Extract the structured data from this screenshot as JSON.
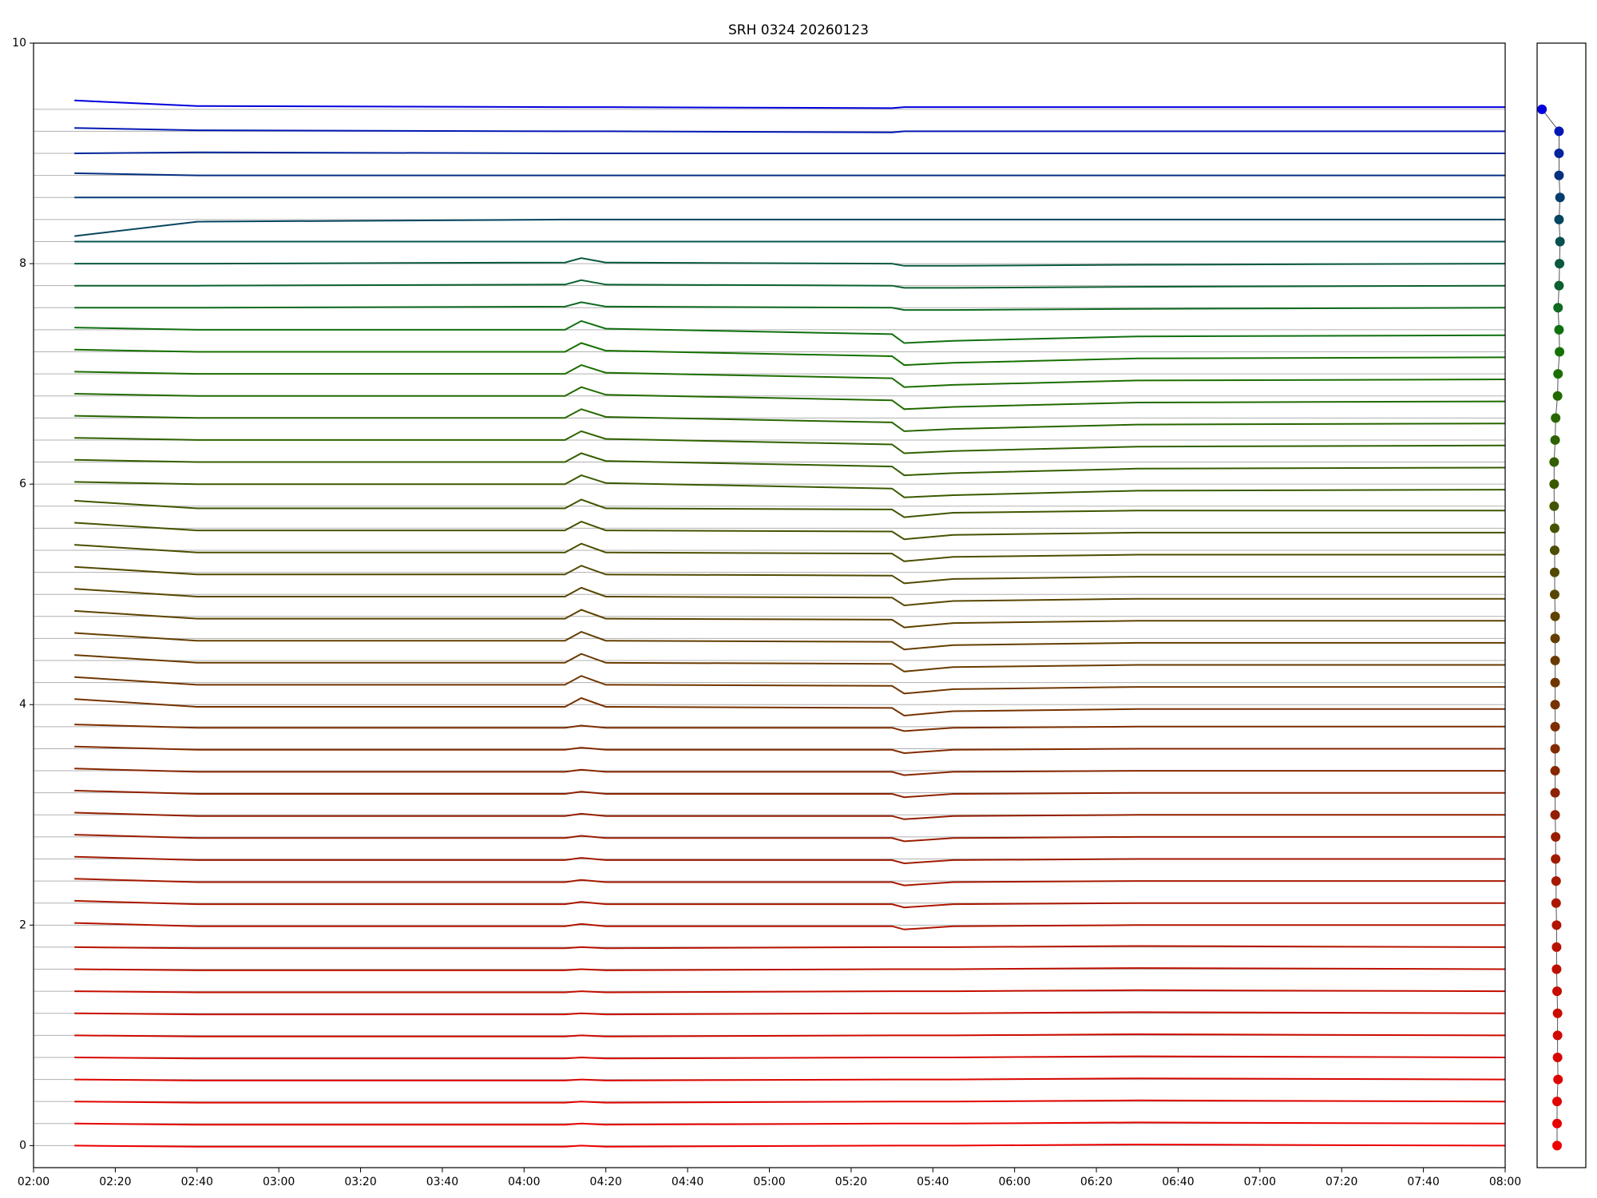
{
  "chart_data": [
    {
      "type": "line",
      "title": "SRH 0324 20260123",
      "x": [
        "02:10",
        "02:40",
        "04:10",
        "04:14",
        "04:20",
        "05:30",
        "05:33",
        "05:45",
        "06:30",
        "08:00"
      ],
      "xlim": [
        "02:00",
        "08:00"
      ],
      "xticks": [
        "02:00",
        "02:20",
        "02:40",
        "03:00",
        "03:20",
        "03:40",
        "04:00",
        "04:20",
        "04:40",
        "05:00",
        "05:20",
        "05:40",
        "06:00",
        "06:20",
        "06:40",
        "07:00",
        "07:20",
        "07:40",
        "08:00"
      ],
      "ylim": [
        -0.2,
        10
      ],
      "yticks": [
        0,
        2,
        4,
        6,
        8,
        10
      ],
      "baselines": [
        0,
        0.2,
        0.4,
        0.6,
        0.8,
        1,
        1.2,
        1.4,
        1.6,
        1.8,
        2,
        2.2,
        2.4,
        2.6,
        2.8,
        3,
        3.2,
        3.4,
        3.6,
        3.8,
        4,
        4.2,
        4.4,
        4.6,
        4.8,
        5,
        5.2,
        5.4,
        5.6,
        5.8,
        6,
        6.2,
        6.4,
        6.6,
        6.8,
        7,
        7.2,
        7.4,
        7.6,
        7.8,
        8,
        8.2,
        8.4,
        8.6,
        8.8,
        9,
        9.2,
        9.4
      ],
      "baseline_color": "#b0b0b0",
      "series": [
        {
          "color": "#ee0000",
          "values": [
            0,
            -0.01,
            -0.01,
            0,
            -0.01,
            0,
            0,
            0,
            0.01,
            0
          ]
        },
        {
          "color": "#e80200",
          "values": [
            0.2,
            0.19,
            0.19,
            0.2,
            0.19,
            0.2,
            0.2,
            0.2,
            0.21,
            0.2
          ]
        },
        {
          "color": "#e20400",
          "values": [
            0.4,
            0.39,
            0.39,
            0.4,
            0.39,
            0.4,
            0.4,
            0.4,
            0.41,
            0.4
          ]
        },
        {
          "color": "#dc0600",
          "values": [
            0.6,
            0.59,
            0.59,
            0.6,
            0.59,
            0.6,
            0.6,
            0.6,
            0.61,
            0.6
          ]
        },
        {
          "color": "#d60800",
          "values": [
            0.8,
            0.79,
            0.79,
            0.8,
            0.79,
            0.8,
            0.8,
            0.8,
            0.81,
            0.8
          ]
        },
        {
          "color": "#d00a00",
          "values": [
            1,
            0.99,
            0.99,
            1,
            0.99,
            1,
            1,
            1,
            1.01,
            1
          ]
        },
        {
          "color": "#ca0c00",
          "values": [
            1.2,
            1.19,
            1.19,
            1.2,
            1.19,
            1.2,
            1.2,
            1.2,
            1.21,
            1.2
          ]
        },
        {
          "color": "#c40e00",
          "values": [
            1.4,
            1.39,
            1.39,
            1.4,
            1.39,
            1.4,
            1.4,
            1.4,
            1.41,
            1.4
          ]
        },
        {
          "color": "#be1000",
          "values": [
            1.6,
            1.59,
            1.59,
            1.6,
            1.59,
            1.6,
            1.6,
            1.6,
            1.61,
            1.6
          ]
        },
        {
          "color": "#b81200",
          "values": [
            1.8,
            1.79,
            1.79,
            1.8,
            1.79,
            1.8,
            1.8,
            1.8,
            1.81,
            1.8
          ]
        },
        {
          "color": "#b21400",
          "values": [
            2.02,
            1.99,
            1.99,
            2.01,
            1.99,
            1.99,
            1.96,
            1.99,
            2,
            2
          ]
        },
        {
          "color": "#ac1600",
          "values": [
            2.22,
            2.19,
            2.19,
            2.21,
            2.19,
            2.19,
            2.16,
            2.19,
            2.2,
            2.2
          ]
        },
        {
          "color": "#a61800",
          "values": [
            2.42,
            2.39,
            2.39,
            2.41,
            2.39,
            2.39,
            2.36,
            2.39,
            2.4,
            2.4
          ]
        },
        {
          "color": "#a01a00",
          "values": [
            2.62,
            2.59,
            2.59,
            2.61,
            2.59,
            2.59,
            2.56,
            2.59,
            2.6,
            2.6
          ]
        },
        {
          "color": "#9a1c00",
          "values": [
            2.82,
            2.79,
            2.79,
            2.81,
            2.79,
            2.79,
            2.76,
            2.79,
            2.8,
            2.8
          ]
        },
        {
          "color": "#941e00",
          "values": [
            3.02,
            2.99,
            2.99,
            3.01,
            2.99,
            2.99,
            2.96,
            2.99,
            3,
            3
          ]
        },
        {
          "color": "#8e2200",
          "values": [
            3.22,
            3.19,
            3.19,
            3.21,
            3.19,
            3.19,
            3.16,
            3.19,
            3.2,
            3.2
          ]
        },
        {
          "color": "#882600",
          "values": [
            3.42,
            3.39,
            3.39,
            3.41,
            3.39,
            3.39,
            3.36,
            3.39,
            3.4,
            3.4
          ]
        },
        {
          "color": "#822a00",
          "values": [
            3.62,
            3.59,
            3.59,
            3.61,
            3.59,
            3.59,
            3.56,
            3.59,
            3.6,
            3.6
          ]
        },
        {
          "color": "#7c2e00",
          "values": [
            3.82,
            3.79,
            3.79,
            3.81,
            3.79,
            3.79,
            3.76,
            3.79,
            3.8,
            3.8
          ]
        },
        {
          "color": "#763200",
          "values": [
            4.05,
            3.98,
            3.98,
            4.06,
            3.98,
            3.97,
            3.9,
            3.94,
            3.96,
            3.96
          ]
        },
        {
          "color": "#703600",
          "values": [
            4.25,
            4.18,
            4.18,
            4.26,
            4.18,
            4.17,
            4.1,
            4.14,
            4.16,
            4.16
          ]
        },
        {
          "color": "#6a3a00",
          "values": [
            4.45,
            4.38,
            4.38,
            4.46,
            4.38,
            4.37,
            4.3,
            4.34,
            4.36,
            4.36
          ]
        },
        {
          "color": "#643e00",
          "values": [
            4.65,
            4.58,
            4.58,
            4.66,
            4.58,
            4.57,
            4.5,
            4.54,
            4.56,
            4.56
          ]
        },
        {
          "color": "#5e4200",
          "values": [
            4.85,
            4.78,
            4.78,
            4.86,
            4.78,
            4.77,
            4.7,
            4.74,
            4.76,
            4.76
          ]
        },
        {
          "color": "#584600",
          "values": [
            5.05,
            4.98,
            4.98,
            5.06,
            4.98,
            4.97,
            4.9,
            4.94,
            4.96,
            4.96
          ]
        },
        {
          "color": "#524a00",
          "values": [
            5.25,
            5.18,
            5.18,
            5.26,
            5.18,
            5.17,
            5.1,
            5.14,
            5.16,
            5.16
          ]
        },
        {
          "color": "#4c4e00",
          "values": [
            5.45,
            5.38,
            5.38,
            5.46,
            5.38,
            5.37,
            5.3,
            5.34,
            5.36,
            5.36
          ]
        },
        {
          "color": "#465200",
          "values": [
            5.65,
            5.58,
            5.58,
            5.66,
            5.58,
            5.57,
            5.5,
            5.54,
            5.56,
            5.56
          ]
        },
        {
          "color": "#405600",
          "values": [
            5.85,
            5.78,
            5.78,
            5.86,
            5.78,
            5.77,
            5.7,
            5.74,
            5.76,
            5.76
          ]
        },
        {
          "color": "#3a5a00",
          "values": [
            6.02,
            6,
            6,
            6.08,
            6.01,
            5.96,
            5.88,
            5.9,
            5.94,
            5.95
          ]
        },
        {
          "color": "#345e00",
          "values": [
            6.22,
            6.2,
            6.2,
            6.28,
            6.21,
            6.16,
            6.08,
            6.1,
            6.14,
            6.15
          ]
        },
        {
          "color": "#2e6200",
          "values": [
            6.42,
            6.4,
            6.4,
            6.48,
            6.41,
            6.36,
            6.28,
            6.3,
            6.34,
            6.35
          ]
        },
        {
          "color": "#286600",
          "values": [
            6.62,
            6.6,
            6.6,
            6.68,
            6.61,
            6.56,
            6.48,
            6.5,
            6.54,
            6.55
          ]
        },
        {
          "color": "#226a00",
          "values": [
            6.82,
            6.8,
            6.8,
            6.88,
            6.81,
            6.76,
            6.68,
            6.7,
            6.74,
            6.75
          ]
        },
        {
          "color": "#1c6e00",
          "values": [
            7.02,
            7,
            7,
            7.08,
            7.01,
            6.96,
            6.88,
            6.9,
            6.94,
            6.95
          ]
        },
        {
          "color": "#167000",
          "values": [
            7.22,
            7.2,
            7.2,
            7.28,
            7.21,
            7.16,
            7.08,
            7.1,
            7.14,
            7.15
          ]
        },
        {
          "color": "#107010",
          "values": [
            7.42,
            7.4,
            7.4,
            7.48,
            7.41,
            7.36,
            7.28,
            7.3,
            7.34,
            7.35
          ]
        },
        {
          "color": "#0e6a20",
          "values": [
            7.6,
            7.6,
            7.61,
            7.65,
            7.61,
            7.6,
            7.58,
            7.58,
            7.59,
            7.6
          ]
        },
        {
          "color": "#0c6030",
          "values": [
            7.8,
            7.8,
            7.81,
            7.85,
            7.81,
            7.8,
            7.78,
            7.78,
            7.79,
            7.8
          ]
        },
        {
          "color": "#0a5840",
          "values": [
            8,
            8,
            8.01,
            8.05,
            8.01,
            8,
            7.98,
            7.98,
            7.99,
            8
          ]
        },
        {
          "color": "#085050",
          "values": [
            8.2,
            8.2,
            8.2,
            8.2,
            8.2,
            8.2,
            8.2,
            8.2,
            8.2,
            8.2
          ]
        },
        {
          "color": "#064660",
          "values": [
            8.25,
            8.38,
            8.4,
            8.4,
            8.4,
            8.4,
            8.4,
            8.4,
            8.4,
            8.4
          ]
        },
        {
          "color": "#053c70",
          "values": [
            8.6,
            8.6,
            8.6,
            8.6,
            8.6,
            8.6,
            8.6,
            8.6,
            8.6,
            8.6
          ]
        },
        {
          "color": "#043080",
          "values": [
            8.82,
            8.8,
            8.8,
            8.8,
            8.8,
            8.8,
            8.8,
            8.8,
            8.8,
            8.8
          ]
        },
        {
          "color": "#03249a",
          "values": [
            9,
            9.01,
            9,
            9,
            9,
            9,
            9,
            9,
            9,
            9
          ]
        },
        {
          "color": "#0218b4",
          "values": [
            9.23,
            9.21,
            9.2,
            9.2,
            9.2,
            9.19,
            9.2,
            9.2,
            9.2,
            9.2
          ]
        },
        {
          "color": "#0000dd",
          "values": [
            9.48,
            9.43,
            9.42,
            9.42,
            9.42,
            9.41,
            9.42,
            9.42,
            9.42,
            9.42
          ]
        }
      ]
    },
    {
      "type": "scatter",
      "xlim": [
        0,
        1
      ],
      "ylim": [
        -0.2,
        10
      ],
      "line_color": "#555555",
      "x": [
        0.41,
        0.41,
        0.41,
        0.43,
        0.42,
        0.42,
        0.42,
        0.41,
        0.4,
        0.4,
        0.4,
        0.39,
        0.39,
        0.38,
        0.38,
        0.37,
        0.37,
        0.37,
        0.37,
        0.37,
        0.37,
        0.37,
        0.37,
        0.37,
        0.37,
        0.36,
        0.36,
        0.36,
        0.36,
        0.35,
        0.35,
        0.35,
        0.37,
        0.38,
        0.42,
        0.43,
        0.46,
        0.45,
        0.43,
        0.45,
        0.46,
        0.47,
        0.45,
        0.47,
        0.45,
        0.45,
        0.45,
        0.1
      ],
      "y": [
        0,
        0.2,
        0.4,
        0.6,
        0.8,
        1,
        1.2,
        1.4,
        1.6,
        1.8,
        2,
        2.2,
        2.4,
        2.6,
        2.8,
        3,
        3.2,
        3.4,
        3.6,
        3.8,
        4,
        4.2,
        4.4,
        4.6,
        4.8,
        5,
        5.2,
        5.4,
        5.6,
        5.8,
        6,
        6.2,
        6.4,
        6.6,
        6.8,
        7,
        7.2,
        7.4,
        7.6,
        7.8,
        8,
        8.2,
        8.4,
        8.6,
        8.8,
        9,
        9.2,
        9.4
      ]
    }
  ]
}
